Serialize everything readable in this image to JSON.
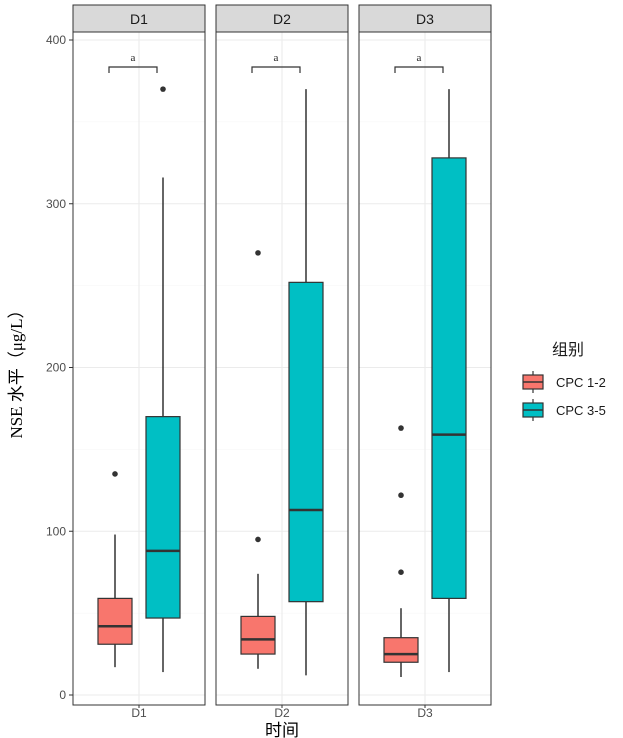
{
  "chart_data": {
    "type": "boxplot",
    "title": "",
    "xlabel": "时间",
    "ylabel": "NSE 水平（μg/L）",
    "ylim": [
      0,
      400
    ],
    "yticks": [
      0,
      100,
      200,
      300,
      400
    ],
    "grid": true,
    "legend": {
      "title": "组别",
      "position": "right",
      "entries": [
        "CPC 1-2",
        "CPC 3-5"
      ]
    },
    "colors": {
      "CPC 1-2": "#F8766D",
      "CPC 3-5": "#00BFC4"
    },
    "panels": [
      {
        "name": "D1",
        "annotation": "a",
        "boxes": [
          {
            "group": "CPC 1-2",
            "min": 17,
            "q1": 31,
            "median": 42,
            "q3": 59,
            "max": 98,
            "outliers": [
              135
            ]
          },
          {
            "group": "CPC 3-5",
            "min": 14,
            "q1": 47,
            "median": 88,
            "q3": 170,
            "max": 316,
            "outliers": [
              370
            ]
          }
        ]
      },
      {
        "name": "D2",
        "annotation": "a",
        "boxes": [
          {
            "group": "CPC 1-2",
            "min": 16,
            "q1": 25,
            "median": 34,
            "q3": 48,
            "max": 74,
            "outliers": [
              95,
              270
            ]
          },
          {
            "group": "CPC 3-5",
            "min": 12,
            "q1": 57,
            "median": 113,
            "q3": 252,
            "max": 370,
            "outliers": []
          }
        ]
      },
      {
        "name": "D3",
        "annotation": "a",
        "boxes": [
          {
            "group": "CPC 1-2",
            "min": 11,
            "q1": 20,
            "median": 25,
            "q3": 35,
            "max": 53,
            "outliers": [
              75,
              122,
              163
            ]
          },
          {
            "group": "CPC 3-5",
            "min": 14,
            "q1": 59,
            "median": 159,
            "q3": 328,
            "max": 370,
            "outliers": []
          }
        ]
      }
    ]
  }
}
